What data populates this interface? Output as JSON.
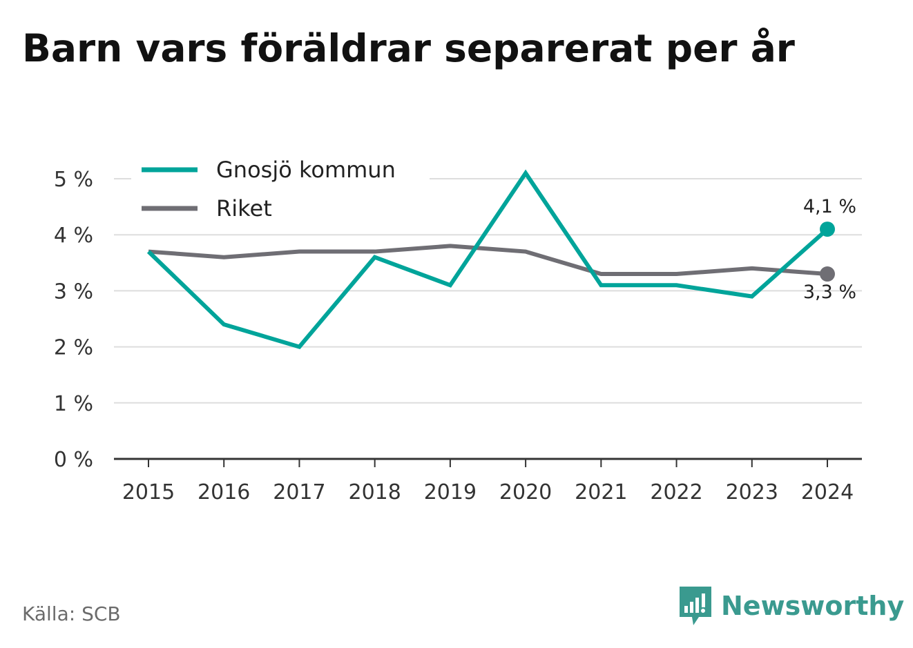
{
  "title": "Barn vars föräldrar separerat per år",
  "source": "Källa: SCB",
  "brand": {
    "name": "Newsworthy",
    "icon": "bar-chart-speech-bubble-icon",
    "color": "#3a9a8f"
  },
  "chart_data": {
    "type": "line",
    "title": "Barn vars föräldrar separerat per år",
    "xlabel": "",
    "ylabel": "",
    "x": [
      "2015",
      "2016",
      "2017",
      "2018",
      "2019",
      "2020",
      "2021",
      "2022",
      "2023",
      "2024"
    ],
    "ylim": [
      0,
      5
    ],
    "yticks": [
      0,
      1,
      2,
      3,
      4,
      5
    ],
    "ytick_labels": [
      "0 %",
      "1 %",
      "2 %",
      "3 %",
      "4 %",
      "5 %"
    ],
    "grid": true,
    "legend_position": "top-left",
    "series": [
      {
        "name": "Gnosjö kommun",
        "color": "#00a49a",
        "values": [
          3.7,
          2.4,
          2.0,
          3.6,
          3.1,
          5.1,
          3.1,
          3.1,
          2.9,
          4.1
        ],
        "end_label": "4,1 %"
      },
      {
        "name": "Riket",
        "color": "#6f6e74",
        "values": [
          3.7,
          3.6,
          3.7,
          3.7,
          3.8,
          3.7,
          3.3,
          3.3,
          3.4,
          3.3
        ],
        "end_label": "3,3 %"
      }
    ]
  }
}
